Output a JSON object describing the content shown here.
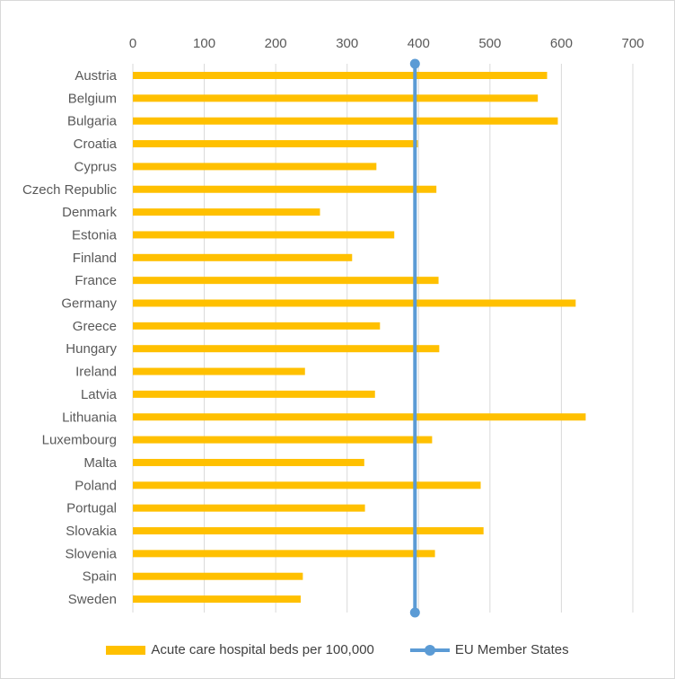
{
  "chart_data": {
    "type": "bar",
    "orientation": "horizontal",
    "categories": [
      "Austria",
      "Belgium",
      "Bulgaria",
      "Croatia",
      "Cyprus",
      "Czech Republic",
      "Denmark",
      "Estonia",
      "Finland",
      "France",
      "Germany",
      "Greece",
      "Hungary",
      "Ireland",
      "Latvia",
      "Lithuania",
      "Luxembourg",
      "Malta",
      "Poland",
      "Portugal",
      "Slovakia",
      "Slovenia",
      "Spain",
      "Sweden"
    ],
    "series": [
      {
        "name": "Acute care hospital beds per 100,000",
        "type": "bar",
        "color": "#FFC000",
        "values": [
          580,
          567,
          595,
          399,
          341,
          425,
          262,
          366,
          307,
          428,
          620,
          346,
          429,
          241,
          339,
          634,
          419,
          324,
          487,
          325,
          491,
          423,
          238,
          235
        ]
      },
      {
        "name": "EU Member States",
        "type": "line",
        "color": "#5B9BD5",
        "value": 395
      }
    ],
    "xlim": [
      0,
      700
    ],
    "xticks": [
      "0",
      "100",
      "200",
      "300",
      "400",
      "500",
      "600",
      "700"
    ],
    "x_axis_position": "top",
    "grid": true,
    "legend_position": "bottom"
  }
}
